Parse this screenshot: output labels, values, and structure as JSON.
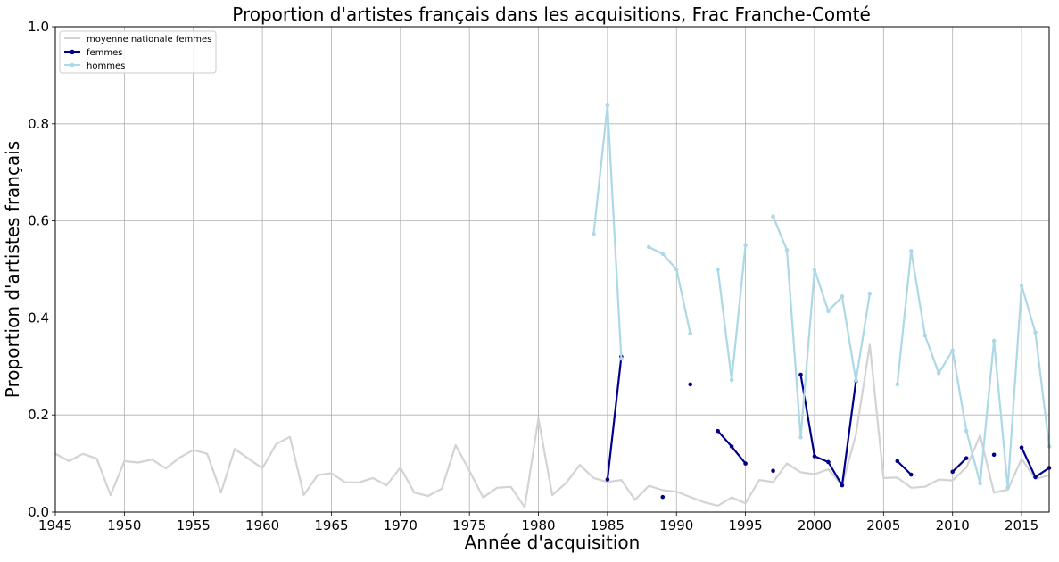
{
  "chart_data": {
    "type": "line",
    "title": "Proportion d'artistes français dans les acquisitions, Frac Franche-Comté",
    "xlabel": "Année d'acquisition",
    "ylabel": "Proportion d'artistes français",
    "xlim": [
      1945,
      2017
    ],
    "ylim": [
      0,
      1.0
    ],
    "grid": true,
    "legend_position": "top-left",
    "xticks": [
      1945,
      1950,
      1955,
      1960,
      1965,
      1970,
      1975,
      1980,
      1985,
      1990,
      1995,
      2000,
      2005,
      2010,
      2015
    ],
    "xtick_labels": [
      "1945",
      "1950",
      "1955",
      "1960",
      "1965",
      "1970",
      "1975",
      "1980",
      "1985",
      "1990",
      "1995",
      "2000",
      "2005",
      "2010",
      "2015"
    ],
    "yticks": [
      0,
      0.2,
      0.4,
      0.6,
      0.8,
      1.0
    ],
    "ytick_labels": [
      "0.0",
      "0.2",
      "0.4",
      "0.6",
      "0.8",
      "1.0"
    ],
    "series": [
      {
        "name": "moyenne nationale femmes",
        "color": "#d3d3d3",
        "markers": false,
        "points": [
          [
            1945,
            0.12
          ],
          [
            1946,
            0.105
          ],
          [
            1947,
            0.12
          ],
          [
            1948,
            0.11
          ],
          [
            1949,
            0.035
          ],
          [
            1950,
            0.105
          ],
          [
            1951,
            0.102
          ],
          [
            1952,
            0.108
          ],
          [
            1953,
            0.09
          ],
          [
            1954,
            0.112
          ],
          [
            1955,
            0.128
          ],
          [
            1956,
            0.12
          ],
          [
            1957,
            0.04
          ],
          [
            1958,
            0.13
          ],
          [
            1959,
            0.11
          ],
          [
            1960,
            0.09
          ],
          [
            1961,
            0.14
          ],
          [
            1962,
            0.155
          ],
          [
            1963,
            0.035
          ],
          [
            1964,
            0.076
          ],
          [
            1965,
            0.08
          ],
          [
            1966,
            0.061
          ],
          [
            1967,
            0.061
          ],
          [
            1968,
            0.07
          ],
          [
            1969,
            0.055
          ],
          [
            1970,
            0.092
          ],
          [
            1971,
            0.04
          ],
          [
            1972,
            0.033
          ],
          [
            1973,
            0.048
          ],
          [
            1974,
            0.138
          ],
          [
            1975,
            0.085
          ],
          [
            1976,
            0.03
          ],
          [
            1977,
            0.05
          ],
          [
            1978,
            0.052
          ],
          [
            1979,
            0.01
          ],
          [
            1980,
            0.193
          ],
          [
            1981,
            0.035
          ],
          [
            1982,
            0.06
          ],
          [
            1983,
            0.097
          ],
          [
            1984,
            0.07
          ],
          [
            1985,
            0.062
          ],
          [
            1986,
            0.066
          ],
          [
            1987,
            0.025
          ],
          [
            1988,
            0.054
          ],
          [
            1989,
            0.045
          ],
          [
            1990,
            0.042
          ],
          [
            1991,
            0.031
          ],
          [
            1992,
            0.02
          ],
          [
            1993,
            0.013
          ],
          [
            1994,
            0.03
          ],
          [
            1995,
            0.018
          ],
          [
            1996,
            0.066
          ],
          [
            1997,
            0.062
          ],
          [
            1998,
            0.1
          ],
          [
            1999,
            0.082
          ],
          [
            2000,
            0.078
          ],
          [
            2001,
            0.088
          ],
          [
            2002,
            0.055
          ],
          [
            2003,
            0.16
          ],
          [
            2004,
            0.345
          ],
          [
            2005,
            0.07
          ],
          [
            2006,
            0.071
          ],
          [
            2007,
            0.05
          ],
          [
            2008,
            0.052
          ],
          [
            2009,
            0.067
          ],
          [
            2010,
            0.065
          ],
          [
            2011,
            0.092
          ],
          [
            2012,
            0.158
          ],
          [
            2013,
            0.04
          ],
          [
            2014,
            0.046
          ],
          [
            2015,
            0.11
          ],
          [
            2016,
            0.068
          ],
          [
            2017,
            0.076
          ]
        ]
      },
      {
        "name": "femmes",
        "color": "#00008b",
        "markers": true,
        "points": [
          [
            1985,
            0.067
          ],
          [
            1986,
            0.32
          ],
          [
            1987,
            null
          ],
          [
            1988,
            null
          ],
          [
            1989,
            0.031
          ],
          [
            1990,
            null
          ],
          [
            1991,
            0.263
          ],
          [
            1992,
            null
          ],
          [
            1993,
            0.167
          ],
          [
            1994,
            0.135
          ],
          [
            1995,
            0.1
          ],
          [
            1996,
            null
          ],
          [
            1997,
            0.085
          ],
          [
            1998,
            null
          ],
          [
            1999,
            0.283
          ],
          [
            2000,
            0.115
          ],
          [
            2001,
            0.103
          ],
          [
            2002,
            0.055
          ],
          [
            2003,
            0.27
          ],
          [
            2004,
            null
          ],
          [
            2005,
            null
          ],
          [
            2006,
            0.105
          ],
          [
            2007,
            0.077
          ],
          [
            2008,
            null
          ],
          [
            2009,
            null
          ],
          [
            2010,
            0.083
          ],
          [
            2011,
            0.111
          ],
          [
            2012,
            null
          ],
          [
            2013,
            0.118
          ],
          [
            2014,
            null
          ],
          [
            2015,
            0.133
          ],
          [
            2016,
            0.072
          ],
          [
            2017,
            0.091
          ]
        ]
      },
      {
        "name": "hommes",
        "color": "#add8e6",
        "markers": true,
        "points": [
          [
            1984,
            0.573
          ],
          [
            1985,
            0.838
          ],
          [
            1986,
            0.316
          ],
          [
            1987,
            null
          ],
          [
            1988,
            0.546
          ],
          [
            1989,
            0.532
          ],
          [
            1990,
            0.5
          ],
          [
            1991,
            0.368
          ],
          [
            1992,
            null
          ],
          [
            1993,
            0.5
          ],
          [
            1994,
            0.272
          ],
          [
            1995,
            0.55
          ],
          [
            1996,
            null
          ],
          [
            1997,
            0.609
          ],
          [
            1998,
            0.54
          ],
          [
            1999,
            0.154
          ],
          [
            2000,
            0.5
          ],
          [
            2001,
            0.414
          ],
          [
            2002,
            0.444
          ],
          [
            2003,
            0.271
          ],
          [
            2004,
            0.45
          ],
          [
            2005,
            null
          ],
          [
            2006,
            0.263
          ],
          [
            2007,
            0.538
          ],
          [
            2008,
            0.364
          ],
          [
            2009,
            0.286
          ],
          [
            2010,
            0.333
          ],
          [
            2011,
            0.167
          ],
          [
            2012,
            0.059
          ],
          [
            2013,
            0.353
          ],
          [
            2014,
            0.05
          ],
          [
            2015,
            0.467
          ],
          [
            2016,
            0.37
          ],
          [
            2017,
            0.135
          ]
        ]
      }
    ]
  }
}
